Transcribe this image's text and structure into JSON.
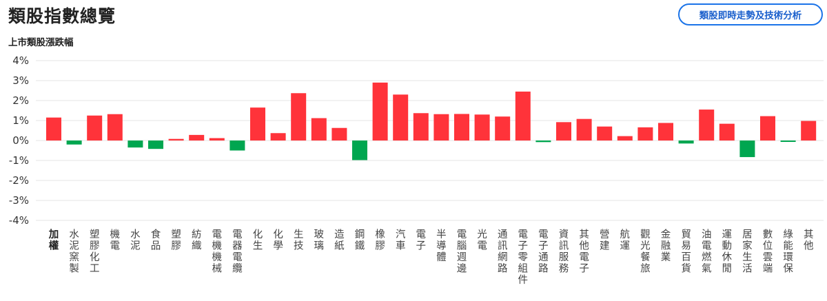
{
  "header": {
    "title": "類股指數總覽",
    "button_label": "類股即時走勢及技術分析"
  },
  "colors": {
    "up": "#ff333a",
    "down": "#00a650",
    "grid": "#e6e6e6",
    "button": "#1a73e8"
  },
  "chart_data": {
    "type": "bar",
    "title": "上市類股漲跌幅",
    "xlabel": "",
    "ylabel": "",
    "ylim": [
      -4,
      4
    ],
    "yticks": [
      4,
      3,
      2,
      1,
      0,
      -1,
      -2,
      -3,
      -4
    ],
    "ytick_labels": [
      "4%",
      "3%",
      "2%",
      "1%",
      "0%",
      "-1%",
      "-2%",
      "-3%",
      "-4%"
    ],
    "grid": true,
    "categories": [
      "加權",
      "水泥窯製",
      "塑膠化工",
      "機電",
      "水泥",
      "食品",
      "塑膠",
      "紡織",
      "電機機械",
      "電器電纜",
      "化生",
      "化學",
      "生技",
      "玻璃",
      "造紙",
      "鋼鐵",
      "橡膠",
      "汽車",
      "電子",
      "半導體",
      "電腦週邊",
      "光電",
      "通訊網路",
      "電子零組件",
      "電子通路",
      "資訊服務",
      "其他電子",
      "營建",
      "航運",
      "觀光餐旅",
      "金融業",
      "貿易百貨",
      "油電燃氣",
      "運動休閒",
      "居家生活",
      "數位雲端",
      "綠能環保",
      "其他"
    ],
    "values": [
      1.15,
      -0.2,
      1.25,
      1.32,
      -0.35,
      -0.42,
      0.08,
      0.28,
      0.12,
      -0.5,
      1.65,
      0.37,
      2.37,
      1.12,
      0.63,
      -0.98,
      2.9,
      2.3,
      1.37,
      1.32,
      1.33,
      1.3,
      1.2,
      2.45,
      -0.08,
      0.92,
      1.08,
      0.7,
      0.22,
      0.66,
      0.88,
      -0.15,
      1.55,
      0.84,
      -0.83,
      1.22,
      -0.07,
      0.98
    ],
    "highlight_first": true
  }
}
